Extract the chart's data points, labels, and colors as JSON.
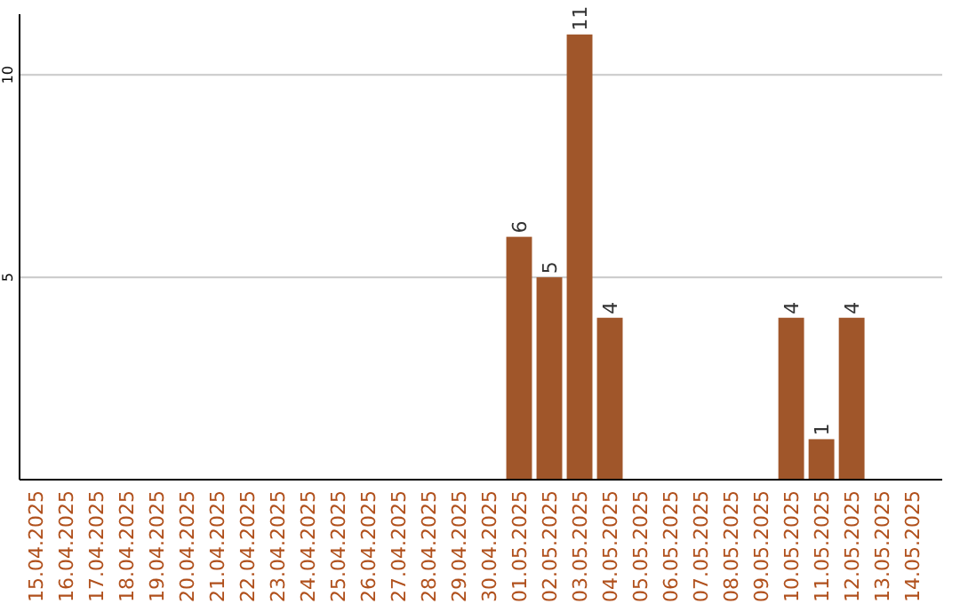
{
  "chart_data": {
    "type": "bar",
    "categories": [
      "15.04.2025",
      "16.04.2025",
      "17.04.2025",
      "18.04.2025",
      "19.04.2025",
      "20.04.2025",
      "21.04.2025",
      "22.04.2025",
      "23.04.2025",
      "24.04.2025",
      "25.04.2025",
      "26.04.2025",
      "27.04.2025",
      "28.04.2025",
      "29.04.2025",
      "30.04.2025",
      "01.05.2025",
      "02.05.2025",
      "03.05.2025",
      "04.05.2025",
      "05.05.2025",
      "06.05.2025",
      "07.05.2025",
      "08.05.2025",
      "09.05.2025",
      "10.05.2025",
      "11.05.2025",
      "12.05.2025",
      "13.05.2025",
      "14.05.2025"
    ],
    "values": [
      0,
      0,
      0,
      0,
      0,
      0,
      0,
      0,
      0,
      0,
      0,
      0,
      0,
      0,
      0,
      0,
      6,
      5,
      11,
      4,
      0,
      0,
      0,
      0,
      0,
      4,
      1,
      4,
      0,
      0
    ],
    "value_labels": [
      null,
      null,
      null,
      null,
      null,
      null,
      null,
      null,
      null,
      null,
      null,
      null,
      null,
      null,
      null,
      null,
      "6",
      "5",
      "11",
      "4",
      null,
      null,
      null,
      null,
      null,
      "4",
      "1",
      "4",
      null,
      null
    ],
    "color": "#a0562a",
    "ylim": [
      0,
      11.5
    ],
    "yticks": [
      5,
      10
    ],
    "grid": "y"
  }
}
